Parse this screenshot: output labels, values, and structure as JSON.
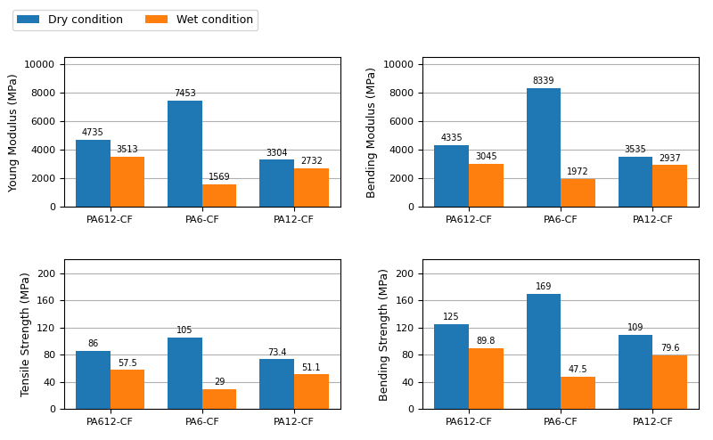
{
  "chart_data": [
    {
      "type": "bar",
      "ylabel": "Young Modulus (MPa)",
      "categories": [
        "PA612-CF",
        "PA6-CF",
        "PA12-CF"
      ],
      "series": [
        {
          "name": "Dry condition",
          "values": [
            4735,
            7453,
            3304
          ]
        },
        {
          "name": "Wet condition",
          "values": [
            3513,
            1569,
            2732
          ]
        }
      ],
      "ylim": [
        0,
        10500
      ],
      "yticks": [
        0,
        2000,
        4000,
        6000,
        8000,
        10000
      ],
      "grid": true,
      "data_labels": true,
      "legend": "upper left"
    },
    {
      "type": "bar",
      "ylabel": "Bending Modulus (MPa)",
      "categories": [
        "PA612-CF",
        "PA6-CF",
        "PA12-CF"
      ],
      "series": [
        {
          "name": "Dry condition",
          "values": [
            4335,
            8339,
            3535
          ]
        },
        {
          "name": "Wet condition",
          "values": [
            3045,
            1972,
            2937
          ]
        }
      ],
      "ylim": [
        0,
        10500
      ],
      "yticks": [
        0,
        2000,
        4000,
        6000,
        8000,
        10000
      ],
      "grid": true,
      "data_labels": true
    },
    {
      "type": "bar",
      "ylabel": "Tensile Strength (MPa)",
      "categories": [
        "PA612-CF",
        "PA6-CF",
        "PA12-CF"
      ],
      "series": [
        {
          "name": "Dry condition",
          "values": [
            86,
            105,
            73.4
          ]
        },
        {
          "name": "Wet condition",
          "values": [
            57.5,
            29,
            51.1
          ]
        }
      ],
      "ylim": [
        0,
        220
      ],
      "yticks": [
        0,
        40,
        80,
        120,
        160,
        200
      ],
      "grid": true,
      "data_labels": true
    },
    {
      "type": "bar",
      "ylabel": "Bending Strength (MPa)",
      "categories": [
        "PA612-CF",
        "PA6-CF",
        "PA12-CF"
      ],
      "series": [
        {
          "name": "Dry condition",
          "values": [
            125,
            169,
            109
          ]
        },
        {
          "name": "Wet condition",
          "values": [
            89.8,
            47.5,
            79.6
          ]
        }
      ],
      "ylim": [
        0,
        220
      ],
      "yticks": [
        0,
        40,
        80,
        120,
        160,
        200
      ],
      "grid": true,
      "data_labels": true
    }
  ]
}
